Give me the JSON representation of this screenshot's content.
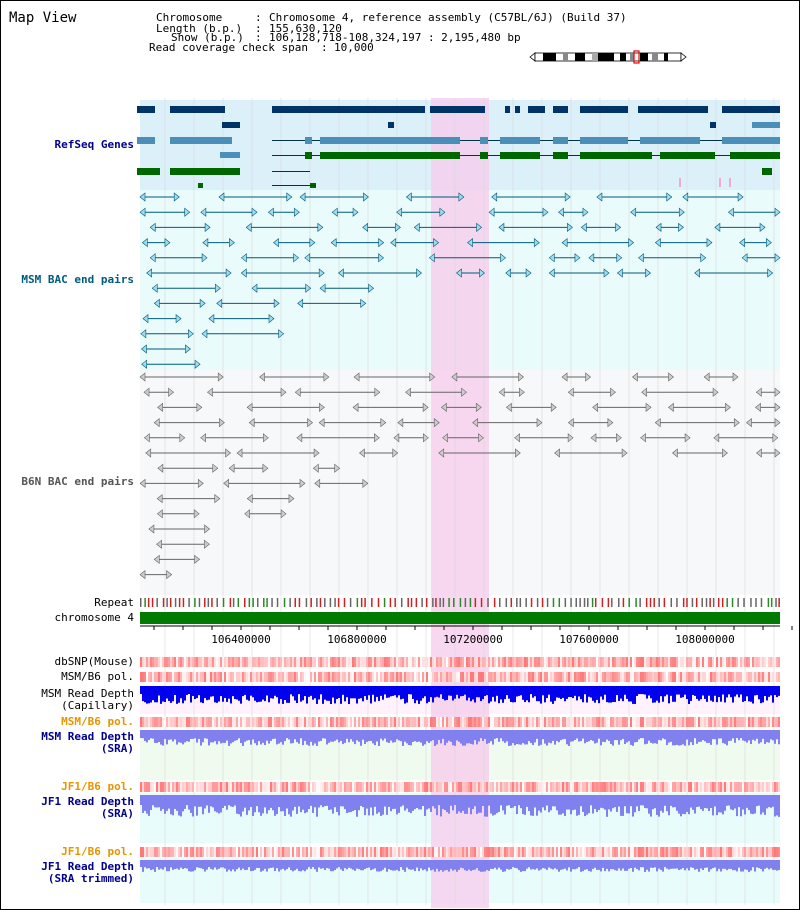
{
  "header": {
    "title": "Map View",
    "chromosome_label": "Chromosome",
    "chromosome_value": "Chromosome 4, reference assembly (C57BL/6J) (Build 37)",
    "length_label": "Length (b.p.)",
    "length_value": "155,630,120",
    "show_label": "Show (b.p.)",
    "show_value": "106,128,718-108,324,197 : 2,195,480 bp",
    "coverage_label": "Read coverage check span",
    "coverage_value": "10,000"
  },
  "tracks": {
    "refseq": "RefSeq Genes",
    "msm_bac": "MSM BAC end pairs",
    "b6n_bac": "B6N BAC end pairs",
    "repeat": "Repeat",
    "chromosome": "chromosome 4",
    "dbsnp": "dbSNP(Mouse)",
    "msm_b6_pol": "MSM/B6 pol.",
    "msm_read_depth_cap_1": "MSM Read Depth",
    "msm_read_depth_cap_2": "(Capillary)",
    "msm_b6_pol_2": "MSM/B6 pol.",
    "msm_read_depth_sra_1": "MSM Read Depth",
    "msm_read_depth_sra_2": "(SRA)",
    "jf1_b6_pol": "JF1/B6 pol.",
    "jf1_read_depth_sra_1": "JF1 Read Depth",
    "jf1_read_depth_sra_2": "(SRA)",
    "jf1_b6_pol_2": "JF1/B6 pol.",
    "jf1_read_depth_trim_1": "JF1 Read Depth",
    "jf1_read_depth_trim_2": "(SRA trimmed)"
  },
  "axis": {
    "ticks": [
      "106400000",
      "106800000",
      "107200000",
      "107600000",
      "108000000"
    ]
  },
  "colors": {
    "refseq_dark": "#003366",
    "refseq_mid": "#4a8fb8",
    "refseq_green": "#006600",
    "msm_bac": "#005a7d",
    "b6n_bac": "#666666",
    "highlight": "#f6cdec",
    "chromosome_bar": "#007a00",
    "read_depth_cap": "#0000ee",
    "read_depth_sra": "#8080ee"
  }
}
